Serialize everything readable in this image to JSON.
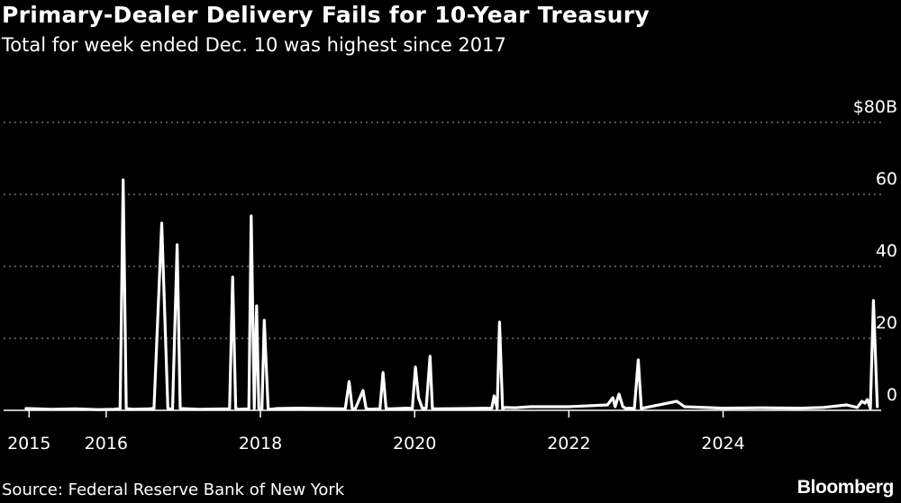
{
  "header": {
    "title": "Primary-Dealer Delivery Fails for 10-Year Treasury",
    "subtitle": "Total for week ended Dec. 10 was highest since 2017"
  },
  "footer": {
    "source": "Source: Federal Reserve Bank of New York",
    "brand": "Bloomberg"
  },
  "colors": {
    "background": "#000000",
    "line": "#ffffff",
    "grid": "#8a8a8a"
  },
  "chart_data": {
    "type": "line",
    "title": "Primary-Dealer Delivery Fails for 10-Year Treasury",
    "subtitle": "Total for week ended Dec. 10 was highest since 2017",
    "xlabel": "",
    "ylabel": "",
    "unit": "billions of dollars",
    "grid": true,
    "y_axis_position": "right",
    "xlim": [
      2014.95,
      2026.05
    ],
    "ylim": [
      0,
      80
    ],
    "x_ticks": [
      2015,
      2016,
      2018,
      2020,
      2022,
      2024
    ],
    "x_tick_labels": [
      "2015",
      "2016",
      "2018",
      "2020",
      "2022",
      "2024"
    ],
    "y_ticks": [
      0,
      20,
      40,
      60,
      80
    ],
    "y_tick_labels": [
      "0",
      "20",
      "40",
      "60",
      "$80B"
    ],
    "series": [
      {
        "name": "Primary-dealer delivery fails, 10-year Treasury",
        "x": [
          2014.96,
          2015.3,
          2015.6,
          2015.9,
          2016.1,
          2016.18,
          2016.22,
          2016.26,
          2016.34,
          2016.55,
          2016.62,
          2016.72,
          2016.8,
          2016.86,
          2016.92,
          2016.96,
          2017.2,
          2017.6,
          2017.64,
          2017.68,
          2017.72,
          2017.85,
          2017.88,
          2017.92,
          2017.95,
          2017.98,
          2018.02,
          2018.05,
          2018.1,
          2018.14,
          2018.18,
          2018.22,
          2018.5,
          2018.8,
          2019.1,
          2019.15,
          2019.19,
          2019.23,
          2019.33,
          2019.37,
          2019.41,
          2019.55,
          2019.59,
          2019.63,
          2019.68,
          2019.9,
          2019.97,
          2020.01,
          2020.05,
          2020.1,
          2020.15,
          2020.2,
          2020.23,
          2020.27,
          2021.0,
          2021.03,
          2021.07,
          2021.1,
          2021.14,
          2021.18,
          2021.3,
          2021.5,
          2022.0,
          2022.5,
          2022.57,
          2022.6,
          2022.65,
          2022.7,
          2022.74,
          2022.78,
          2022.85,
          2022.9,
          2022.94,
          2022.98,
          2023.4,
          2023.5,
          2024.0,
          2024.5,
          2025.0,
          2025.3,
          2025.6,
          2025.74,
          2025.8,
          2025.84,
          2025.87,
          2025.91,
          2025.95,
          2026.0
        ],
        "values": [
          0.5,
          0.3,
          0.4,
          0.2,
          0.3,
          0.5,
          64,
          0.5,
          0.3,
          0.4,
          0.5,
          52,
          0.5,
          0.3,
          46,
          0.5,
          0.3,
          0.4,
          37,
          0.5,
          0.3,
          0.4,
          54,
          0.5,
          29,
          0.5,
          0.3,
          25,
          0.4,
          0.3,
          0.4,
          0.5,
          0.6,
          0.5,
          0.4,
          8,
          0.5,
          0.4,
          5.5,
          0.5,
          0.3,
          0.4,
          10.5,
          0.5,
          0.4,
          0.6,
          0.5,
          12,
          3.5,
          0.5,
          0.6,
          15,
          0.5,
          0.4,
          0.6,
          4,
          0.5,
          24.5,
          0.5,
          0.8,
          0.7,
          1,
          1,
          1.5,
          3.5,
          1,
          4.5,
          1,
          0.5,
          0.6,
          0.5,
          14,
          0.5,
          0.7,
          2.5,
          1,
          0.6,
          0.7,
          0.6,
          0.8,
          1.5,
          0.8,
          2.5,
          2,
          3,
          0.5,
          30.5,
          1
        ]
      }
    ]
  }
}
